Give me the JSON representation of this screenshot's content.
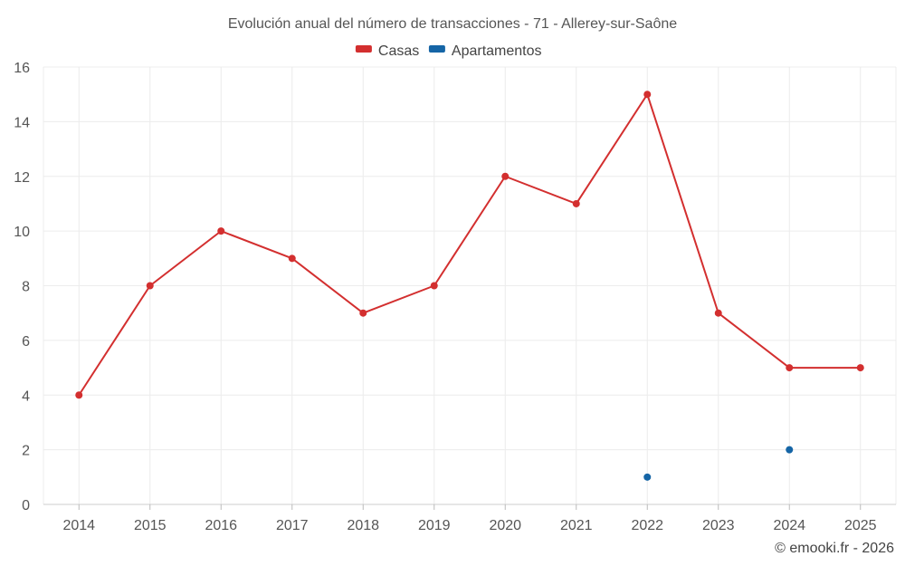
{
  "chart_data": {
    "type": "line",
    "title": "Evolución anual del número de transacciones - 71 - Allerey-sur-Saône",
    "categories": [
      "2014",
      "2015",
      "2016",
      "2017",
      "2018",
      "2019",
      "2020",
      "2021",
      "2022",
      "2023",
      "2024",
      "2025"
    ],
    "series": [
      {
        "name": "Casas",
        "color": "#d32f2f",
        "values": [
          4,
          8,
          10,
          9,
          7,
          8,
          12,
          11,
          15,
          7,
          5,
          5
        ]
      },
      {
        "name": "Apartamentos",
        "color": "#1565a6",
        "values": [
          null,
          null,
          null,
          null,
          null,
          null,
          null,
          null,
          1,
          null,
          2,
          null
        ]
      }
    ],
    "ylim": [
      0,
      16
    ],
    "yticks": [
      0,
      2,
      4,
      6,
      8,
      10,
      12,
      14,
      16
    ],
    "grid": true,
    "legend_position": "top-center"
  },
  "credit": "© emooki.fr - 2026"
}
